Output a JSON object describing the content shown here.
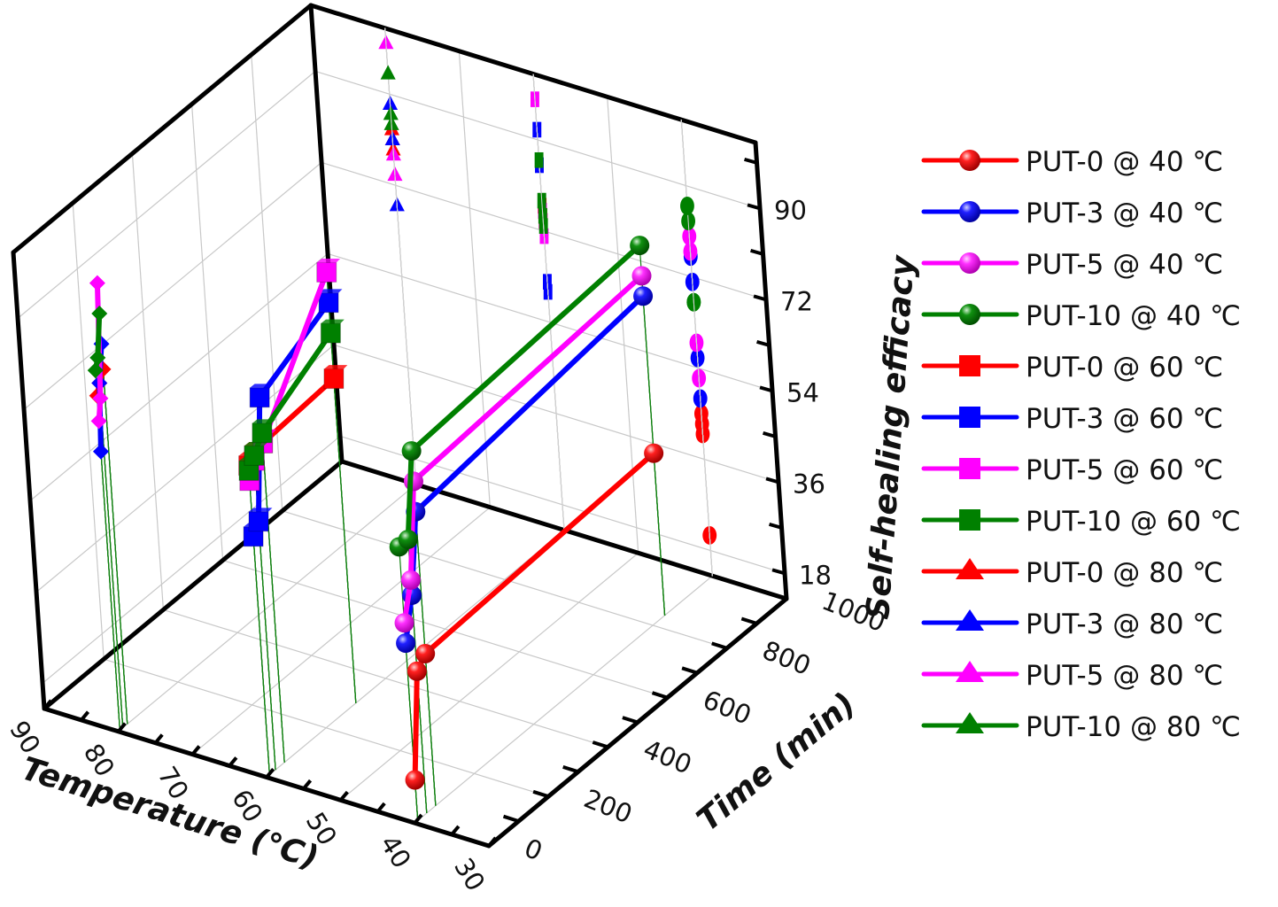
{
  "chart_data": {
    "type": "scatter3d",
    "title": "",
    "axes": {
      "x": {
        "label": "Temperature (℃)",
        "range": [
          90,
          30
        ],
        "ticks": [
          90,
          80,
          70,
          60,
          50,
          40,
          30
        ]
      },
      "y": {
        "label": "Time (min)",
        "range": [
          0,
          1000
        ],
        "ticks": [
          0,
          200,
          400,
          600,
          800,
          1000
        ]
      },
      "z": {
        "label": "Self-healing efficacy",
        "range": [
          13,
          103
        ],
        "ticks": [
          18,
          36,
          54,
          72,
          90
        ]
      }
    },
    "grid": true,
    "legend_position": "right",
    "projections": "back-wall (time = 1000) shadows of every point; vertical drop lines to floor",
    "series": [
      {
        "name": "PUT-0 @ 40 ℃",
        "color": "#ff0000",
        "marker": "sphere",
        "temperature": 40,
        "time": [
          10,
          40,
          70,
          840
        ],
        "efficacy": [
          21,
          41,
          43,
          45
        ]
      },
      {
        "name": "PUT-3 @ 40 ℃",
        "color": "#0000ff",
        "marker": "sphere",
        "temperature": 40,
        "time": [
          10,
          40,
          70,
          840
        ],
        "efficacy": [
          48,
          56,
          71,
          76
        ]
      },
      {
        "name": "PUT-5 @ 40 ℃",
        "color": "#ff00ff",
        "marker": "sphere",
        "temperature": 40,
        "time": [
          10,
          40,
          70,
          840
        ],
        "efficacy": [
          52,
          59,
          77,
          80
        ]
      },
      {
        "name": "PUT-10 @ 40 ℃",
        "color": "#008000",
        "marker": "sphere",
        "temperature": 40,
        "time": [
          10,
          40,
          70,
          840
        ],
        "efficacy": [
          67,
          67,
          83,
          86
        ]
      },
      {
        "name": "PUT-0 @ 60 ℃",
        "color": "#ff0000",
        "marker": "cube",
        "temperature": 60,
        "time": [
          10,
          30,
          60,
          300
        ],
        "efficacy": [
          74,
          75,
          76,
          77
        ]
      },
      {
        "name": "PUT-3 @ 60 ℃",
        "color": "#0000ff",
        "marker": "cube",
        "temperature": 60,
        "time": [
          10,
          30,
          60,
          300
        ],
        "efficacy": [
          60,
          62,
          85,
          92
        ]
      },
      {
        "name": "PUT-5 @ 60 ℃",
        "color": "#ff00ff",
        "marker": "cube",
        "temperature": 60,
        "time": [
          10,
          30,
          60,
          300
        ],
        "efficacy": [
          71,
          74,
          76,
          98
        ]
      },
      {
        "name": "PUT-10 @ 60 ℃",
        "color": "#008000",
        "marker": "cube",
        "temperature": 60,
        "time": [
          10,
          30,
          60,
          300
        ],
        "efficacy": [
          73,
          75,
          78,
          86
        ]
      },
      {
        "name": "PUT-0 @ 80 ℃",
        "color": "#ff0000",
        "marker": "tetra",
        "temperature": 80,
        "time": [
          5,
          15,
          30
        ],
        "efficacy": [
          79,
          81,
          83
        ]
      },
      {
        "name": "PUT-3 @ 80 ℃",
        "color": "#0000ff",
        "marker": "tetra",
        "temperature": 80,
        "time": [
          5,
          15,
          30
        ],
        "efficacy": [
          68,
          81,
          88
        ]
      },
      {
        "name": "PUT-5 @ 80 ℃",
        "color": "#ff00ff",
        "marker": "tetra",
        "temperature": 80,
        "time": [
          5,
          15,
          30
        ],
        "efficacy": [
          74,
          78,
          100
        ]
      },
      {
        "name": "PUT-10 @ 80 ℃",
        "color": "#008000",
        "marker": "tetra",
        "temperature": 80,
        "time": [
          5,
          15,
          30
        ],
        "efficacy": [
          84,
          86,
          94
        ]
      }
    ]
  },
  "legend": {
    "items": [
      {
        "label": "PUT-0 @ 40 ℃",
        "color": "#ff0000",
        "marker": "circle"
      },
      {
        "label": "PUT-3 @ 40 ℃",
        "color": "#0000ff",
        "marker": "circle"
      },
      {
        "label": "PUT-5 @ 40 ℃",
        "color": "#ff00ff",
        "marker": "circle"
      },
      {
        "label": "PUT-10 @ 40 ℃",
        "color": "#008000",
        "marker": "circle"
      },
      {
        "label": "PUT-0 @ 60 ℃",
        "color": "#ff0000",
        "marker": "square"
      },
      {
        "label": "PUT-3 @ 60 ℃",
        "color": "#0000ff",
        "marker": "square"
      },
      {
        "label": "PUT-5 @ 60 ℃",
        "color": "#ff00ff",
        "marker": "square"
      },
      {
        "label": "PUT-10 @ 60 ℃",
        "color": "#008000",
        "marker": "square"
      },
      {
        "label": "PUT-0 @ 80 ℃",
        "color": "#ff0000",
        "marker": "triangle"
      },
      {
        "label": "PUT-3 @ 80 ℃",
        "color": "#0000ff",
        "marker": "triangle"
      },
      {
        "label": "PUT-5 @ 80 ℃",
        "color": "#ff00ff",
        "marker": "triangle"
      },
      {
        "label": "PUT-10 @ 80 ℃",
        "color": "#008000",
        "marker": "triangle"
      }
    ]
  }
}
